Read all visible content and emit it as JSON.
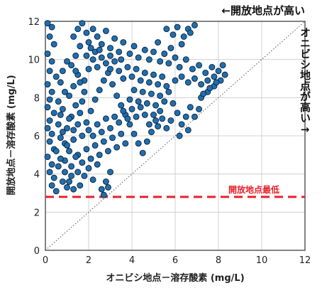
{
  "chart_data": {
    "type": "scatter",
    "xlabel": "オニビシ地点－溶存酸素 (mg/L)",
    "ylabel": "開放地点－溶存酸素 (mg/L)",
    "xlim": [
      0,
      12
    ],
    "ylim": [
      0,
      12
    ],
    "xticks": [
      0,
      2,
      4,
      6,
      8,
      10,
      12
    ],
    "yticks": [
      0,
      2,
      4,
      6,
      8,
      10,
      12
    ],
    "grid": true,
    "annotations": {
      "top_right": "←開放地点が高い",
      "right_side": "オニビシ地点が高い→",
      "reference_line_label": "開放地点最低"
    },
    "reference_line": {
      "type": "horizontal",
      "y": 2.8,
      "color": "#e8202a",
      "style": "dashed",
      "label": "開放地点最低"
    },
    "diagonal_line": {
      "from": [
        0,
        0
      ],
      "to": [
        12,
        12
      ],
      "style": "dotted",
      "color": "#555555"
    },
    "marker_color": "#1f6fae",
    "marker_edge": "#0b1f3a",
    "series": [
      {
        "values": [
          [
            0.1,
            11.9
          ],
          [
            0.3,
            11.7
          ],
          [
            0.2,
            11.2
          ],
          [
            0.4,
            10.8
          ],
          [
            0.1,
            10.3
          ],
          [
            0.3,
            9.9
          ],
          [
            0.2,
            9.4
          ],
          [
            0.5,
            9.1
          ],
          [
            0.1,
            8.7
          ],
          [
            0.3,
            8.3
          ],
          [
            0.2,
            7.9
          ],
          [
            0.1,
            7.5
          ],
          [
            0.4,
            7.2
          ],
          [
            0.2,
            6.8
          ],
          [
            0.1,
            6.4
          ],
          [
            0.3,
            6.1
          ],
          [
            0.2,
            5.7
          ],
          [
            0.4,
            5.3
          ],
          [
            0.1,
            4.9
          ],
          [
            0.3,
            4.5
          ],
          [
            0.2,
            4.1
          ],
          [
            0.4,
            3.8
          ],
          [
            0.3,
            3.4
          ],
          [
            0.5,
            3.1
          ],
          [
            0.6,
            6.6
          ],
          [
            0.7,
            7.1
          ],
          [
            0.8,
            6.2
          ],
          [
            0.9,
            5.6
          ],
          [
            0.6,
            4.4
          ],
          [
            0.8,
            3.6
          ],
          [
            1.0,
            3.3
          ],
          [
            1.2,
            3.9
          ],
          [
            0.9,
            4.7
          ],
          [
            1.1,
            5.2
          ],
          [
            1.3,
            5.8
          ],
          [
            1.0,
            6.4
          ],
          [
            1.2,
            7.0
          ],
          [
            1.4,
            7.6
          ],
          [
            1.1,
            8.1
          ],
          [
            1.3,
            8.6
          ],
          [
            1.5,
            9.2
          ],
          [
            1.2,
            9.7
          ],
          [
            1.4,
            10.2
          ],
          [
            1.6,
            10.7
          ],
          [
            1.3,
            11.2
          ],
          [
            1.5,
            11.6
          ],
          [
            1.7,
            11.9
          ],
          [
            1.9,
            11.4
          ],
          [
            2.0,
            10.9
          ],
          [
            2.2,
            11.6
          ],
          [
            2.4,
            11.2
          ],
          [
            2.6,
            10.8
          ],
          [
            2.8,
            11.5
          ],
          [
            3.0,
            10.6
          ],
          [
            3.2,
            11.1
          ],
          [
            3.4,
            10.4
          ],
          [
            3.6,
            10.9
          ],
          [
            3.9,
            10.3
          ],
          [
            4.1,
            10.7
          ],
          [
            4.3,
            10.1
          ],
          [
            4.6,
            10.5
          ],
          [
            4.8,
            10.0
          ],
          [
            5.0,
            10.4
          ],
          [
            5.3,
            9.9
          ],
          [
            5.5,
            10.3
          ],
          [
            5.7,
            9.8
          ],
          [
            6.0,
            10.1
          ],
          [
            6.2,
            9.6
          ],
          [
            6.5,
            10.0
          ],
          [
            6.8,
            9.5
          ],
          [
            7.1,
            9.7
          ],
          [
            7.4,
            9.3
          ],
          [
            7.7,
            9.6
          ],
          [
            8.0,
            9.4
          ],
          [
            8.2,
            9.7
          ],
          [
            8.3,
            9.2
          ],
          [
            8.1,
            8.9
          ],
          [
            7.8,
            8.6
          ],
          [
            7.5,
            8.3
          ],
          [
            7.2,
            8.0
          ],
          [
            5.6,
            11.6
          ],
          [
            5.9,
            11.3
          ],
          [
            6.1,
            11.7
          ],
          [
            6.4,
            11.2
          ],
          [
            6.6,
            11.6
          ],
          [
            6.9,
            11.8
          ],
          [
            6.7,
            11.4
          ],
          [
            6.3,
            10.8
          ],
          [
            5.8,
            10.6
          ],
          [
            5.2,
            10.9
          ],
          [
            1.6,
            3.4
          ],
          [
            1.8,
            3.9
          ],
          [
            2.0,
            4.3
          ],
          [
            2.2,
            3.7
          ],
          [
            2.4,
            4.5
          ],
          [
            2.6,
            3.2
          ],
          [
            2.8,
            3.6
          ],
          [
            3.0,
            4.1
          ],
          [
            2.7,
            2.9
          ],
          [
            2.9,
            3.3
          ],
          [
            1.7,
            6.0
          ],
          [
            1.9,
            6.7
          ],
          [
            2.1,
            7.3
          ],
          [
            2.3,
            7.9
          ],
          [
            2.5,
            8.4
          ],
          [
            2.7,
            8.9
          ],
          [
            2.9,
            9.3
          ],
          [
            3.1,
            8.7
          ],
          [
            3.3,
            8.1
          ],
          [
            3.5,
            7.6
          ],
          [
            3.7,
            7.1
          ],
          [
            3.9,
            6.6
          ],
          [
            4.1,
            6.1
          ],
          [
            4.3,
            5.6
          ],
          [
            4.5,
            5.1
          ],
          [
            4.7,
            5.7
          ],
          [
            4.9,
            6.2
          ],
          [
            5.1,
            6.8
          ],
          [
            5.3,
            7.3
          ],
          [
            5.5,
            7.8
          ],
          [
            5.7,
            8.3
          ],
          [
            5.9,
            7.7
          ],
          [
            6.1,
            7.2
          ],
          [
            6.3,
            6.6
          ],
          [
            6.5,
            7.0
          ],
          [
            6.7,
            7.5
          ],
          [
            6.9,
            7.0
          ],
          [
            7.1,
            7.4
          ],
          [
            6.6,
            6.3
          ],
          [
            6.2,
            6.0
          ],
          [
            1.8,
            8.9
          ],
          [
            2.0,
            9.5
          ],
          [
            2.2,
            10.0
          ],
          [
            2.4,
            9.6
          ],
          [
            2.6,
            10.1
          ],
          [
            2.8,
            9.8
          ],
          [
            3.0,
            9.5
          ],
          [
            3.2,
            9.9
          ],
          [
            3.4,
            9.4
          ],
          [
            3.6,
            9.0
          ],
          [
            3.8,
            9.6
          ],
          [
            4.0,
            9.1
          ],
          [
            4.2,
            9.5
          ],
          [
            4.4,
            8.9
          ],
          [
            4.6,
            9.3
          ],
          [
            4.8,
            8.8
          ],
          [
            5.0,
            9.2
          ],
          [
            5.2,
            8.7
          ],
          [
            5.4,
            9.1
          ],
          [
            5.6,
            8.6
          ],
          [
            1.5,
            5.0
          ],
          [
            1.7,
            4.6
          ],
          [
            1.9,
            5.3
          ],
          [
            2.1,
            4.8
          ],
          [
            2.3,
            5.5
          ],
          [
            2.5,
            5.0
          ],
          [
            2.7,
            5.7
          ],
          [
            2.9,
            5.2
          ],
          [
            3.1,
            5.9
          ],
          [
            3.3,
            5.4
          ],
          [
            3.5,
            6.1
          ],
          [
            3.7,
            5.6
          ],
          [
            3.9,
            7.9
          ],
          [
            4.1,
            8.4
          ],
          [
            4.3,
            7.8
          ],
          [
            4.5,
            8.3
          ],
          [
            4.7,
            7.7
          ],
          [
            4.9,
            8.2
          ],
          [
            5.1,
            7.6
          ],
          [
            5.3,
            8.1
          ],
          [
            2.0,
            6.3
          ],
          [
            2.2,
            6.0
          ],
          [
            2.4,
            6.6
          ],
          [
            2.6,
            6.2
          ],
          [
            2.8,
            6.9
          ],
          [
            3.0,
            6.4
          ],
          [
            3.2,
            7.0
          ],
          [
            3.4,
            6.7
          ],
          [
            3.6,
            7.3
          ],
          [
            3.8,
            6.9
          ],
          [
            4.0,
            7.4
          ],
          [
            4.2,
            7.0
          ],
          [
            4.4,
            7.5
          ],
          [
            4.6,
            7.1
          ],
          [
            4.8,
            6.6
          ],
          [
            5.0,
            7.1
          ],
          [
            5.2,
            6.5
          ],
          [
            5.4,
            6.9
          ],
          [
            5.6,
            6.4
          ],
          [
            5.8,
            6.8
          ],
          [
            1.0,
            9.9
          ],
          [
            0.8,
            9.4
          ],
          [
            0.7,
            8.8
          ],
          [
            0.9,
            8.3
          ],
          [
            0.6,
            7.8
          ],
          [
            0.8,
            7.4
          ],
          [
            1.1,
            6.9
          ],
          [
            1.3,
            6.3
          ],
          [
            1.5,
            6.6
          ],
          [
            1.6,
            7.2
          ],
          [
            1.7,
            7.8
          ],
          [
            1.8,
            8.3
          ],
          [
            1.6,
            8.8
          ],
          [
            1.4,
            9.4
          ],
          [
            1.9,
            10.2
          ],
          [
            2.1,
            10.6
          ],
          [
            2.3,
            10.4
          ],
          [
            2.5,
            10.5
          ],
          [
            3.0,
            10.2
          ],
          [
            3.5,
            10.0
          ],
          [
            6.0,
            8.9
          ],
          [
            6.3,
            9.1
          ],
          [
            6.6,
            8.8
          ],
          [
            6.9,
            9.0
          ],
          [
            7.2,
            8.7
          ],
          [
            7.5,
            8.9
          ],
          [
            7.8,
            9.1
          ],
          [
            7.9,
            8.8
          ],
          [
            7.6,
            8.5
          ],
          [
            7.3,
            8.2
          ],
          [
            1.2,
            4.4
          ],
          [
            1.4,
            4.9
          ],
          [
            1.0,
            5.5
          ],
          [
            0.7,
            5.9
          ],
          [
            0.5,
            5.2
          ],
          [
            0.7,
            4.8
          ],
          [
            0.9,
            4.1
          ],
          [
            1.1,
            3.6
          ],
          [
            1.3,
            3.2
          ],
          [
            1.5,
            4.1
          ]
        ]
      }
    ]
  }
}
